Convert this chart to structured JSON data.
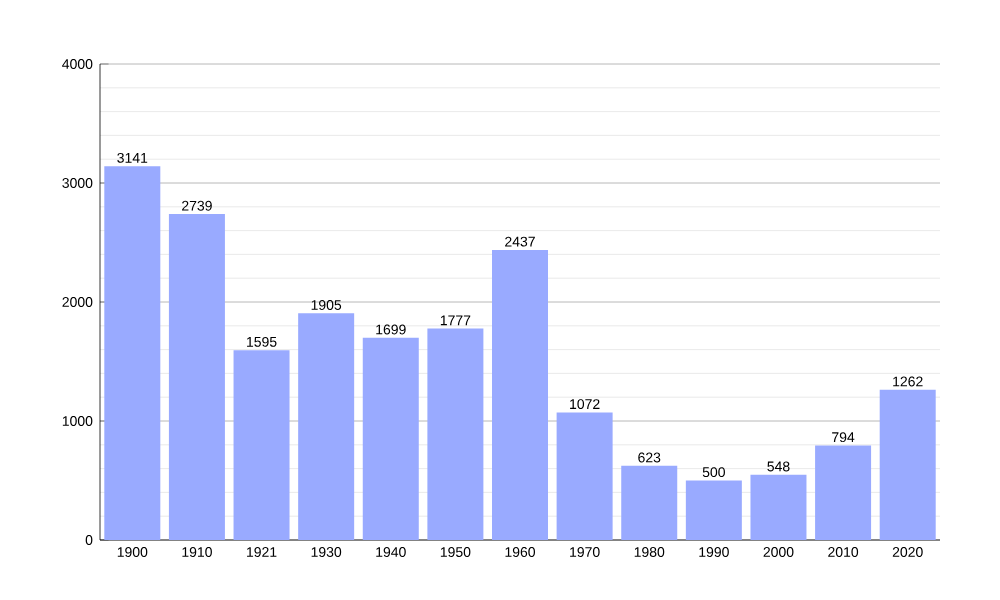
{
  "chart_data": {
    "type": "bar",
    "categories": [
      "1900",
      "1910",
      "1921",
      "1930",
      "1940",
      "1950",
      "1960",
      "1970",
      "1980",
      "1990",
      "2000",
      "2010",
      "2020"
    ],
    "values": [
      3141,
      2739,
      1595,
      1905,
      1699,
      1777,
      2437,
      1072,
      623,
      500,
      548,
      794,
      1262
    ],
    "color": "#99aaff",
    "ylim": [
      0,
      4000
    ],
    "yticks": [
      0,
      1000,
      2000,
      3000,
      4000
    ],
    "grid": "y",
    "data_labels": true
  }
}
